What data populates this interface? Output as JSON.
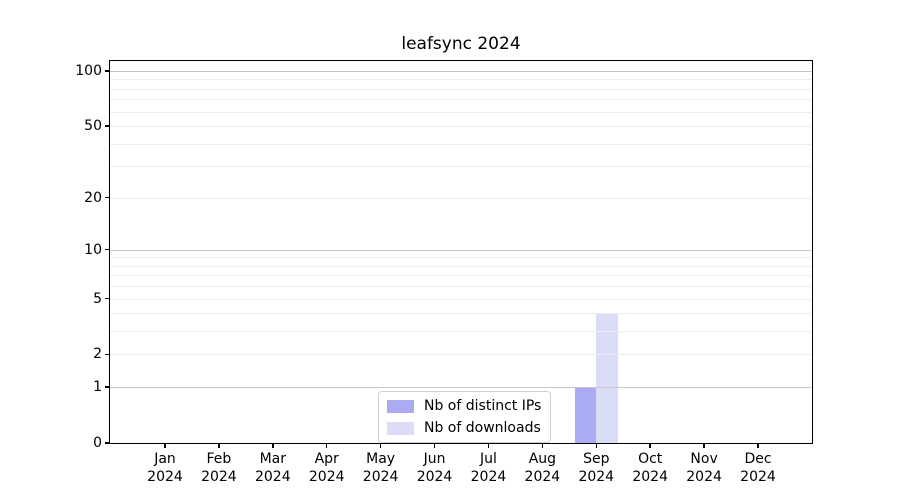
{
  "title": "leafsync 2024",
  "colors": {
    "distinct_ips": "#aaabf2",
    "downloads": "#dbdcf8",
    "grid_major": "#c6c6c6",
    "grid_minor": "#ededed",
    "axis": "#000000",
    "legend_border": "#d0d0d0",
    "background": "#ffffff"
  },
  "y_axis": {
    "scale": "log1p",
    "tick_values": [
      0,
      1,
      2,
      5,
      10,
      20,
      50,
      100
    ],
    "major_gridline_values": [
      1,
      10,
      100
    ],
    "minor_gridline_values": [
      2,
      3,
      4,
      5,
      6,
      7,
      8,
      9,
      20,
      30,
      40,
      50,
      60,
      70,
      80,
      90
    ]
  },
  "legend": {
    "position": "lower center"
  },
  "chart_data": {
    "type": "bar",
    "title": "leafsync 2024",
    "categories": [
      "Jan 2024",
      "Feb 2024",
      "Mar 2024",
      "Apr 2024",
      "May 2024",
      "Jun 2024",
      "Jul 2024",
      "Aug 2024",
      "Sep 2024",
      "Oct 2024",
      "Nov 2024",
      "Dec 2024"
    ],
    "series": [
      {
        "name": "Nb of distinct IPs",
        "color": "#aaabf2",
        "values": [
          0,
          0,
          0,
          0,
          0,
          0,
          0,
          0,
          1,
          0,
          0,
          0
        ]
      },
      {
        "name": "Nb of downloads",
        "color": "#dbdcf8",
        "values": [
          0,
          0,
          0,
          0,
          0,
          0,
          0,
          0,
          4,
          0,
          0,
          0
        ]
      }
    ],
    "xlabel": "",
    "ylabel": "",
    "yscale": "log1p",
    "yticks": [
      0,
      1,
      2,
      5,
      10,
      20,
      50,
      100
    ],
    "ylim": [
      0,
      114
    ],
    "grid": "horizontal major+minor",
    "legend_position": "lower center"
  }
}
